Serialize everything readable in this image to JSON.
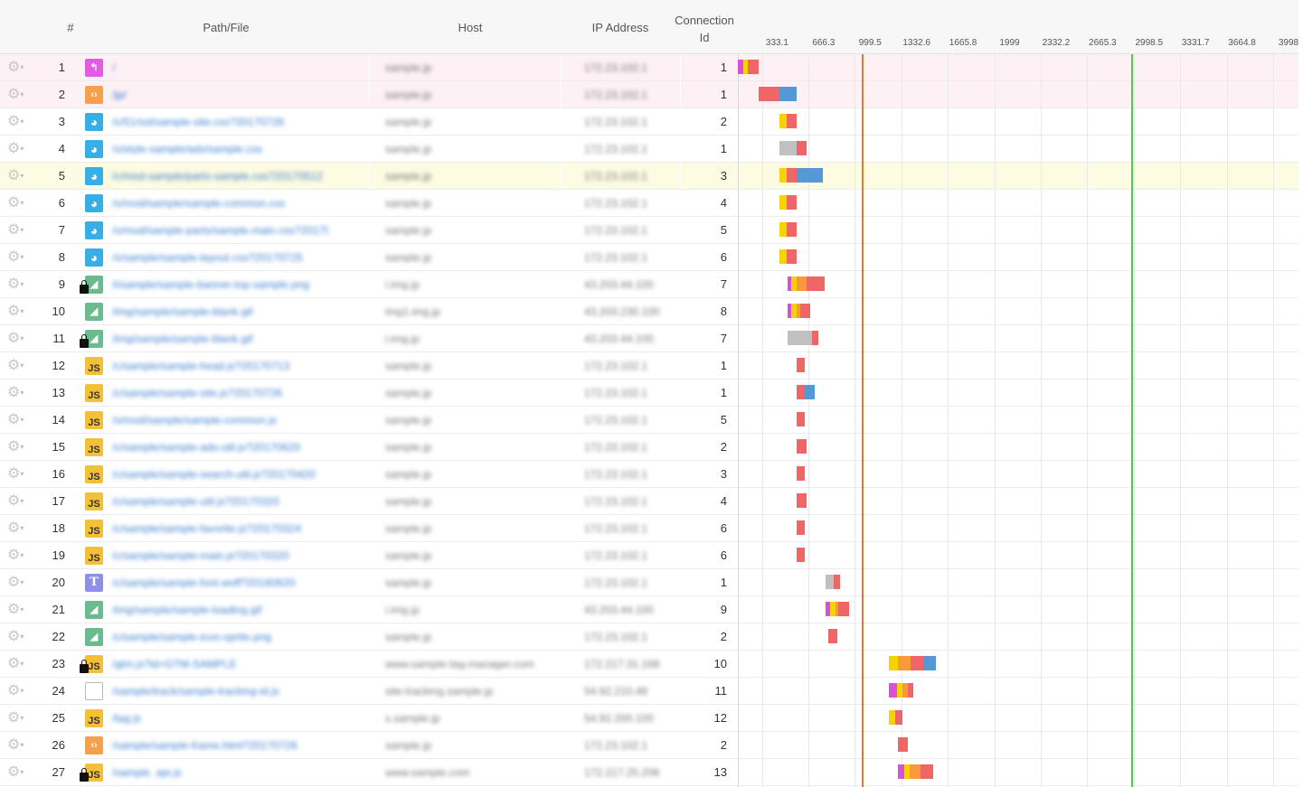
{
  "header": {
    "num": "#",
    "path": "Path/File",
    "host": "Host",
    "ip": "IP Address",
    "conn_line1": "Connection",
    "conn_line2": "Id"
  },
  "timeline": {
    "max": 3998,
    "ticks": [
      "333.1",
      "666.3",
      "999.5",
      "1332.6",
      "1665.8",
      "1999",
      "2332.2",
      "2665.3",
      "2998.5",
      "3331.7",
      "3664.8",
      "3998"
    ],
    "markers": [
      {
        "name": "dom-content-loaded",
        "value": 888,
        "color": "#e07a2e"
      },
      {
        "name": "page-load",
        "value": 2820,
        "color": "#5cc24e"
      }
    ]
  },
  "timing_colors": {
    "redirect": "#d94fd8",
    "dns": "#f5d300",
    "connect": "#f89a3b",
    "ssl": "#b3b3b3",
    "wait": "#ee6766",
    "receive": "#5598d8",
    "blocked": "#c0c0c0"
  },
  "rows": [
    {
      "n": "1",
      "icon": "redir",
      "lock": false,
      "path": "/",
      "host": "sample.jp",
      "ip": "172.23.102.1",
      "conn": "1",
      "bg": "pink",
      "segs": [
        [
          "redirect",
          0,
          40
        ],
        [
          "dns",
          40,
          70
        ],
        [
          "wait",
          70,
          150
        ]
      ]
    },
    {
      "n": "2",
      "icon": "html",
      "lock": false,
      "path": "/jp/",
      "host": "sample.jp",
      "ip": "172.23.102.1",
      "conn": "1",
      "bg": "pink",
      "segs": [
        [
          "wait",
          150,
          300
        ],
        [
          "receive",
          300,
          420
        ]
      ]
    },
    {
      "n": "3",
      "icon": "css",
      "lock": false,
      "path": "/c/51/ssl/sample-site.css?20170726",
      "host": "sample.jp",
      "ip": "172.23.102.1",
      "conn": "2",
      "bg": "",
      "segs": [
        [
          "dns",
          300,
          350
        ],
        [
          "wait",
          350,
          420
        ]
      ]
    },
    {
      "n": "4",
      "icon": "css",
      "lock": false,
      "path": "/s/style-sample/ads/sample.css",
      "host": "sample.jp",
      "ip": "172.23.102.1",
      "conn": "1",
      "bg": "",
      "segs": [
        [
          "blocked",
          300,
          420
        ],
        [
          "wait",
          420,
          490
        ]
      ]
    },
    {
      "n": "5",
      "icon": "css",
      "lock": false,
      "path": "/c/mod-sample/parts-sample.css?20170512",
      "host": "sample.jp",
      "ip": "172.23.102.1",
      "conn": "3",
      "bg": "hl",
      "segs": [
        [
          "dns",
          300,
          350
        ],
        [
          "wait",
          350,
          420
        ],
        [
          "receive",
          420,
          610
        ]
      ]
    },
    {
      "n": "6",
      "icon": "css",
      "lock": false,
      "path": "/s/mod/sample/sample-common.css",
      "host": "sample.jp",
      "ip": "172.23.102.1",
      "conn": "4",
      "bg": "",
      "segs": [
        [
          "dns",
          300,
          350
        ],
        [
          "wait",
          350,
          420
        ]
      ]
    },
    {
      "n": "7",
      "icon": "css",
      "lock": false,
      "path": "/s/mod/sample-parts/sample-main.css?20170725",
      "host": "sample.jp",
      "ip": "172.23.102.1",
      "conn": "5",
      "bg": "",
      "segs": [
        [
          "dns",
          300,
          350
        ],
        [
          "wait",
          350,
          420
        ]
      ]
    },
    {
      "n": "8",
      "icon": "css",
      "lock": false,
      "path": "/s/sample/sample-layout.css?20170725",
      "host": "sample.jp",
      "ip": "172.23.102.1",
      "conn": "6",
      "bg": "",
      "segs": [
        [
          "dns",
          300,
          350
        ],
        [
          "wait",
          350,
          420
        ]
      ]
    },
    {
      "n": "9",
      "icon": "img",
      "lock": true,
      "path": "/i/sample/sample-banner-top-sample.png",
      "host": "i.img.jp",
      "ip": "43.203.44.100",
      "conn": "7",
      "bg": "",
      "segs": [
        [
          "redirect",
          355,
          385
        ],
        [
          "dns",
          385,
          420
        ],
        [
          "connect",
          420,
          490
        ],
        [
          "wait",
          490,
          620
        ]
      ]
    },
    {
      "n": "10",
      "icon": "img",
      "lock": false,
      "path": "/img/sample/sample-blank.gif",
      "host": "img1.img.jp",
      "ip": "43.203.230.100",
      "conn": "8",
      "bg": "",
      "segs": [
        [
          "redirect",
          355,
          385
        ],
        [
          "dns",
          385,
          420
        ],
        [
          "connect",
          420,
          450
        ],
        [
          "wait",
          450,
          520
        ]
      ]
    },
    {
      "n": "11",
      "icon": "img",
      "lock": true,
      "path": "/img/sample/sample-blank.gif",
      "host": "i.img.jp",
      "ip": "43.203.44.100",
      "conn": "7",
      "bg": "",
      "segs": [
        [
          "blocked",
          355,
          530
        ],
        [
          "wait",
          530,
          580
        ]
      ]
    },
    {
      "n": "12",
      "icon": "js",
      "lock": false,
      "path": "/c/sample/sample-head.js?20170713",
      "host": "sample.jp",
      "ip": "172.23.102.1",
      "conn": "1",
      "bg": "",
      "segs": [
        [
          "wait",
          420,
          480
        ]
      ]
    },
    {
      "n": "13",
      "icon": "js",
      "lock": false,
      "path": "/c/sample/sample-site.js?20170726",
      "host": "sample.jp",
      "ip": "172.23.102.1",
      "conn": "1",
      "bg": "",
      "segs": [
        [
          "wait",
          420,
          480
        ],
        [
          "receive",
          480,
          550
        ]
      ]
    },
    {
      "n": "14",
      "icon": "js",
      "lock": false,
      "path": "/s/mod/sample/sample-common.js",
      "host": "sample.jp",
      "ip": "172.23.102.1",
      "conn": "5",
      "bg": "",
      "segs": [
        [
          "wait",
          420,
          480
        ]
      ]
    },
    {
      "n": "15",
      "icon": "js",
      "lock": false,
      "path": "/c/sample/sample-ads-util.js?20170620",
      "host": "sample.jp",
      "ip": "172.23.102.1",
      "conn": "2",
      "bg": "",
      "segs": [
        [
          "wait",
          420,
          490
        ]
      ]
    },
    {
      "n": "16",
      "icon": "js",
      "lock": false,
      "path": "/c/sample/sample-search-util.js?20170420",
      "host": "sample.jp",
      "ip": "172.23.102.1",
      "conn": "3",
      "bg": "",
      "segs": [
        [
          "wait",
          420,
          480
        ]
      ]
    },
    {
      "n": "17",
      "icon": "js",
      "lock": false,
      "path": "/c/sample/sample-util.js?20170320",
      "host": "sample.jp",
      "ip": "172.23.102.1",
      "conn": "4",
      "bg": "",
      "segs": [
        [
          "wait",
          420,
          490
        ]
      ]
    },
    {
      "n": "18",
      "icon": "js",
      "lock": false,
      "path": "/c/sample/sample-favorite.js?20170324",
      "host": "sample.jp",
      "ip": "172.23.102.1",
      "conn": "6",
      "bg": "",
      "segs": [
        [
          "wait",
          420,
          480
        ]
      ]
    },
    {
      "n": "19",
      "icon": "js",
      "lock": false,
      "path": "/c/sample/sample-main.js?20170320",
      "host": "sample.jp",
      "ip": "172.23.102.1",
      "conn": "6",
      "bg": "",
      "segs": [
        [
          "wait",
          420,
          480
        ]
      ]
    },
    {
      "n": "20",
      "icon": "font",
      "lock": false,
      "path": "/c/sample/sample-font.woff?20160620",
      "host": "sample.jp",
      "ip": "172.23.102.1",
      "conn": "1",
      "bg": "",
      "segs": [
        [
          "blocked",
          630,
          690
        ],
        [
          "wait",
          690,
          730
        ]
      ]
    },
    {
      "n": "21",
      "icon": "img",
      "lock": false,
      "path": "/img/sample/sample-loading.gif",
      "host": "i.img.jp",
      "ip": "43.203.44.100",
      "conn": "9",
      "bg": "",
      "segs": [
        [
          "redirect",
          630,
          660
        ],
        [
          "dns",
          660,
          700
        ],
        [
          "connect",
          700,
          720
        ],
        [
          "wait",
          720,
          800
        ]
      ]
    },
    {
      "n": "22",
      "icon": "img",
      "lock": false,
      "path": "/c/sample/sample-icon-sprite.png",
      "host": "sample.jp",
      "ip": "172.23.102.1",
      "conn": "2",
      "bg": "",
      "segs": [
        [
          "wait",
          650,
          710
        ]
      ]
    },
    {
      "n": "23",
      "icon": "js",
      "lock": true,
      "path": "/gtm.js?id=GTM-SAMPLE",
      "host": "www.sample-tag-manager.com",
      "ip": "172.217.31.168",
      "conn": "10",
      "bg": "",
      "segs": [
        [
          "dns",
          1085,
          1150
        ],
        [
          "connect",
          1150,
          1240
        ],
        [
          "wait",
          1240,
          1330
        ],
        [
          "receive",
          1330,
          1420
        ]
      ]
    },
    {
      "n": "24",
      "icon": "doc",
      "lock": false,
      "path": "/sample/track/sample-tracking-id.js",
      "host": "site-tracking.sample.jp",
      "ip": "54.92.210.48",
      "conn": "11",
      "bg": "",
      "segs": [
        [
          "redirect",
          1085,
          1140
        ],
        [
          "dns",
          1140,
          1180
        ],
        [
          "connect",
          1180,
          1220
        ],
        [
          "wait",
          1220,
          1260
        ]
      ]
    },
    {
      "n": "25",
      "icon": "js",
      "lock": false,
      "path": "/tag.js",
      "host": "s.sample.jp",
      "ip": "54.92.200.100",
      "conn": "12",
      "bg": "",
      "segs": [
        [
          "dns",
          1085,
          1130
        ],
        [
          "wait",
          1130,
          1180
        ]
      ]
    },
    {
      "n": "26",
      "icon": "html",
      "lock": false,
      "path": "/sample/sample-frame.html?20170726",
      "host": "sample.jp",
      "ip": "172.23.102.1",
      "conn": "2",
      "bg": "",
      "segs": [
        [
          "wait",
          1150,
          1220
        ]
      ]
    },
    {
      "n": "27",
      "icon": "js",
      "lock": true,
      "path": "/sample_api.js",
      "host": "www.sample.com",
      "ip": "172.217.25.206",
      "conn": "13",
      "bg": "",
      "segs": [
        [
          "redirect",
          1150,
          1190
        ],
        [
          "dns",
          1190,
          1230
        ],
        [
          "connect",
          1230,
          1310
        ],
        [
          "wait",
          1310,
          1400
        ]
      ]
    }
  ]
}
